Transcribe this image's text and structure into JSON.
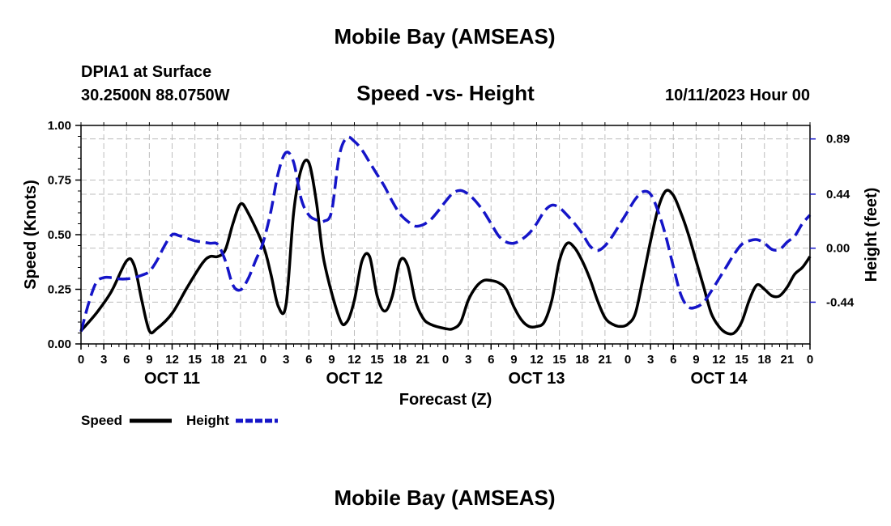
{
  "page": {
    "title": "Mobile Bay (AMSEAS)",
    "bottom_title": "Mobile Bay (AMSEAS)",
    "station": "DPIA1 at Surface",
    "coords": "30.2500N  88.0750W",
    "datetime": "10/11/2023 Hour 00"
  },
  "chart_data": {
    "type": "line",
    "title": "Speed -vs- Height",
    "xlabel": "Forecast (Z)",
    "ylabel_left": "Speed (Knots)",
    "ylabel_right": "Height (feet)",
    "xlim": [
      0,
      96
    ],
    "ylim_left": [
      0,
      1.0
    ],
    "ylim_right": [
      -0.78,
      1.0
    ],
    "grid": true,
    "x_ticks": [
      0,
      3,
      6,
      9,
      12,
      15,
      18,
      21,
      24,
      27,
      30,
      33,
      36,
      39,
      42,
      45,
      48,
      51,
      54,
      57,
      60,
      63,
      66,
      69,
      72,
      75,
      78,
      81,
      84,
      87,
      90,
      93,
      96
    ],
    "x_tick_labels": [
      "0",
      "3",
      "6",
      "9",
      "12",
      "15",
      "18",
      "21",
      "0",
      "3",
      "6",
      "9",
      "12",
      "15",
      "18",
      "21",
      "0",
      "3",
      "6",
      "9",
      "12",
      "15",
      "18",
      "21",
      "0",
      "3",
      "6",
      "9",
      "12",
      "15",
      "18",
      "21",
      "0"
    ],
    "day_labels": [
      {
        "label": "OCT 11",
        "x": 12
      },
      {
        "label": "OCT 12",
        "x": 36
      },
      {
        "label": "OCT 13",
        "x": 60
      },
      {
        "label": "OCT 14",
        "x": 84
      }
    ],
    "y_left_ticks": [
      0,
      0.25,
      0.5,
      0.75,
      1.0
    ],
    "y_left_tick_labels": [
      "0.00",
      "0.25",
      "0.50",
      "0.75",
      "1.00"
    ],
    "y_right_ticks": [
      -0.44,
      0.0,
      0.44,
      0.89
    ],
    "y_right_tick_labels": [
      "-0.44",
      "0.00",
      "0.44",
      "0.89"
    ],
    "legend": [
      {
        "label": "Speed",
        "color": "#000000",
        "style": "solid"
      },
      {
        "label": "Height",
        "color": "#1515c8",
        "style": "dashed"
      }
    ],
    "series": [
      {
        "name": "Speed",
        "axis": "left",
        "color": "#000000",
        "x": [
          0,
          2,
          4,
          6,
          7,
          8,
          9,
          10,
          12,
          14,
          16,
          17,
          18,
          19,
          20,
          21,
          22,
          24,
          25,
          26,
          27,
          28,
          29,
          30,
          31,
          32,
          34,
          35,
          36,
          37,
          38,
          39,
          40,
          41,
          42,
          43,
          44,
          45,
          46,
          48,
          49,
          50,
          51,
          52,
          53,
          54,
          55,
          56,
          57,
          58,
          59,
          60,
          61,
          62,
          63,
          64,
          65,
          66,
          67,
          68,
          69,
          70,
          71,
          72,
          73,
          74,
          75,
          76,
          77,
          78,
          79,
          80,
          81,
          82,
          83,
          84,
          85,
          86,
          87,
          88,
          89,
          90,
          91,
          92,
          93,
          94,
          95,
          96
        ],
        "y": [
          0.06,
          0.14,
          0.24,
          0.38,
          0.36,
          0.2,
          0.06,
          0.07,
          0.14,
          0.26,
          0.37,
          0.4,
          0.4,
          0.43,
          0.55,
          0.64,
          0.6,
          0.45,
          0.32,
          0.17,
          0.18,
          0.6,
          0.8,
          0.83,
          0.65,
          0.38,
          0.12,
          0.1,
          0.2,
          0.38,
          0.4,
          0.22,
          0.15,
          0.22,
          0.38,
          0.36,
          0.2,
          0.12,
          0.09,
          0.07,
          0.07,
          0.1,
          0.2,
          0.26,
          0.29,
          0.29,
          0.28,
          0.25,
          0.17,
          0.11,
          0.08,
          0.08,
          0.1,
          0.2,
          0.38,
          0.46,
          0.44,
          0.38,
          0.3,
          0.2,
          0.12,
          0.09,
          0.08,
          0.09,
          0.14,
          0.3,
          0.47,
          0.62,
          0.7,
          0.68,
          0.6,
          0.5,
          0.38,
          0.26,
          0.14,
          0.08,
          0.05,
          0.05,
          0.1,
          0.2,
          0.27,
          0.25,
          0.22,
          0.22,
          0.26,
          0.32,
          0.35,
          0.4
        ]
      },
      {
        "name": "Height",
        "axis": "right",
        "color": "#1515c8",
        "x": [
          0,
          1,
          2,
          3,
          4,
          5,
          6,
          7,
          8,
          9,
          10,
          11,
          12,
          13,
          14,
          15,
          16,
          17,
          18,
          19,
          20,
          21,
          22,
          23,
          24,
          25,
          26,
          27,
          28,
          29,
          30,
          31,
          32,
          33,
          34,
          35,
          36,
          37,
          38,
          39,
          40,
          41,
          42,
          43,
          44,
          45,
          46,
          47,
          48,
          49,
          50,
          51,
          52,
          53,
          54,
          55,
          56,
          57,
          58,
          59,
          60,
          61,
          62,
          63,
          64,
          65,
          66,
          67,
          68,
          69,
          70,
          71,
          72,
          73,
          74,
          75,
          76,
          77,
          78,
          79,
          80,
          81,
          82,
          83,
          84,
          85,
          86,
          87,
          88,
          89,
          90,
          91,
          92,
          93,
          94,
          95,
          96
        ],
        "y": [
          -0.68,
          -0.45,
          -0.28,
          -0.24,
          -0.24,
          -0.25,
          -0.25,
          -0.24,
          -0.22,
          -0.19,
          -0.1,
          0.02,
          0.11,
          0.1,
          0.08,
          0.06,
          0.05,
          0.04,
          0.03,
          -0.1,
          -0.3,
          -0.34,
          -0.25,
          -0.1,
          0.05,
          0.3,
          0.62,
          0.78,
          0.7,
          0.4,
          0.27,
          0.23,
          0.22,
          0.3,
          0.75,
          0.9,
          0.87,
          0.8,
          0.7,
          0.6,
          0.5,
          0.38,
          0.28,
          0.22,
          0.18,
          0.19,
          0.23,
          0.3,
          0.38,
          0.45,
          0.47,
          0.44,
          0.38,
          0.3,
          0.2,
          0.1,
          0.05,
          0.04,
          0.07,
          0.12,
          0.2,
          0.3,
          0.35,
          0.33,
          0.27,
          0.2,
          0.12,
          0.02,
          -0.02,
          0.02,
          0.1,
          0.2,
          0.3,
          0.4,
          0.46,
          0.44,
          0.3,
          0.1,
          -0.15,
          -0.38,
          -0.48,
          -0.48,
          -0.44,
          -0.35,
          -0.25,
          -0.15,
          -0.05,
          0.03,
          0.06,
          0.07,
          0.04,
          -0.01,
          -0.01,
          0.05,
          0.1,
          0.2,
          0.27
        ]
      }
    ]
  }
}
